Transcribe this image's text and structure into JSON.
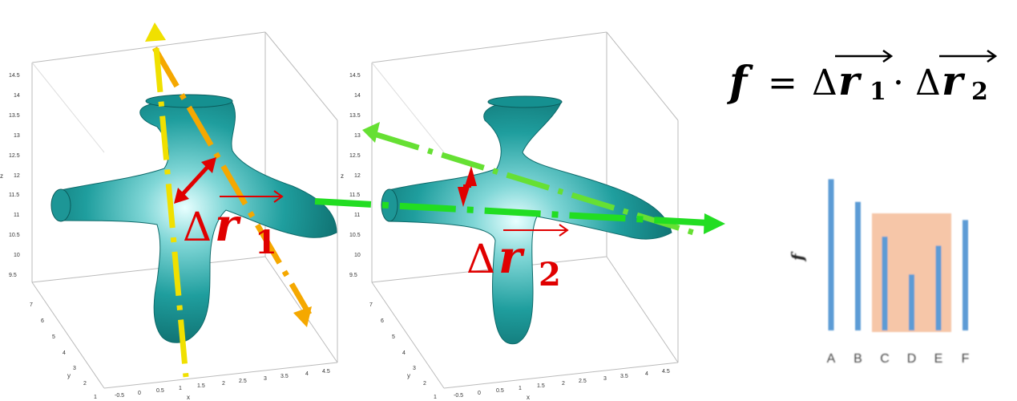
{
  "plot1": {
    "z_ticks": [
      "14.5",
      "14",
      "13.5",
      "13",
      "12.5",
      "12",
      "11.5",
      "11",
      "10.5",
      "10",
      "9.5"
    ],
    "z_label": "z",
    "y_ticks": [
      "7",
      "6",
      "5",
      "4",
      "3",
      "2",
      "1"
    ],
    "y_label": "y",
    "x_ticks": [
      "-0.5",
      "0",
      "0.5",
      "1",
      "1.5",
      "2",
      "2.5",
      "3",
      "3.5",
      "4",
      "4.5"
    ],
    "x_label": "x"
  },
  "plot2": {
    "z_ticks": [
      "14.5",
      "14",
      "13.5",
      "13",
      "12.5",
      "12",
      "11.5",
      "11",
      "10.5",
      "10",
      "9.5"
    ],
    "z_label": "z",
    "y_ticks": [
      "7",
      "6",
      "5",
      "4",
      "3",
      "2",
      "1"
    ],
    "y_label": "y",
    "x_ticks": [
      "-0.5",
      "0",
      "0.5",
      "1",
      "1.5",
      "2",
      "2.5",
      "3",
      "3.5",
      "4",
      "4.5"
    ],
    "x_label": "x"
  },
  "vector1": {
    "delta": "Δ",
    "var": "r",
    "sub": "1"
  },
  "vector2": {
    "delta": "Δ",
    "var": "r",
    "sub": "2"
  },
  "formula": {
    "lhs": "f",
    "equals": "=",
    "term1_delta": "Δ",
    "term1_var": "r",
    "term1_sub": "1",
    "dot": "·",
    "term2_delta": "Δ",
    "term2_var": "r",
    "term2_sub": "2"
  },
  "colors": {
    "tube": "#1a9a9a",
    "yellow_axis": "#f0e000",
    "orange_axis": "#f5a800",
    "green_axis": "#22dd22",
    "red": "#e00000",
    "bar": "#5b9bd5",
    "highlight": "#f6c6a8"
  },
  "chart_data": {
    "type": "bar",
    "ylabel": "f",
    "categories": [
      "A",
      "B",
      "C",
      "D",
      "E",
      "F"
    ],
    "values": [
      1.0,
      0.85,
      0.62,
      0.37,
      0.56,
      0.73
    ],
    "ylim": [
      0,
      1.05
    ],
    "highlight_categories": [
      "C",
      "D",
      "E"
    ]
  }
}
